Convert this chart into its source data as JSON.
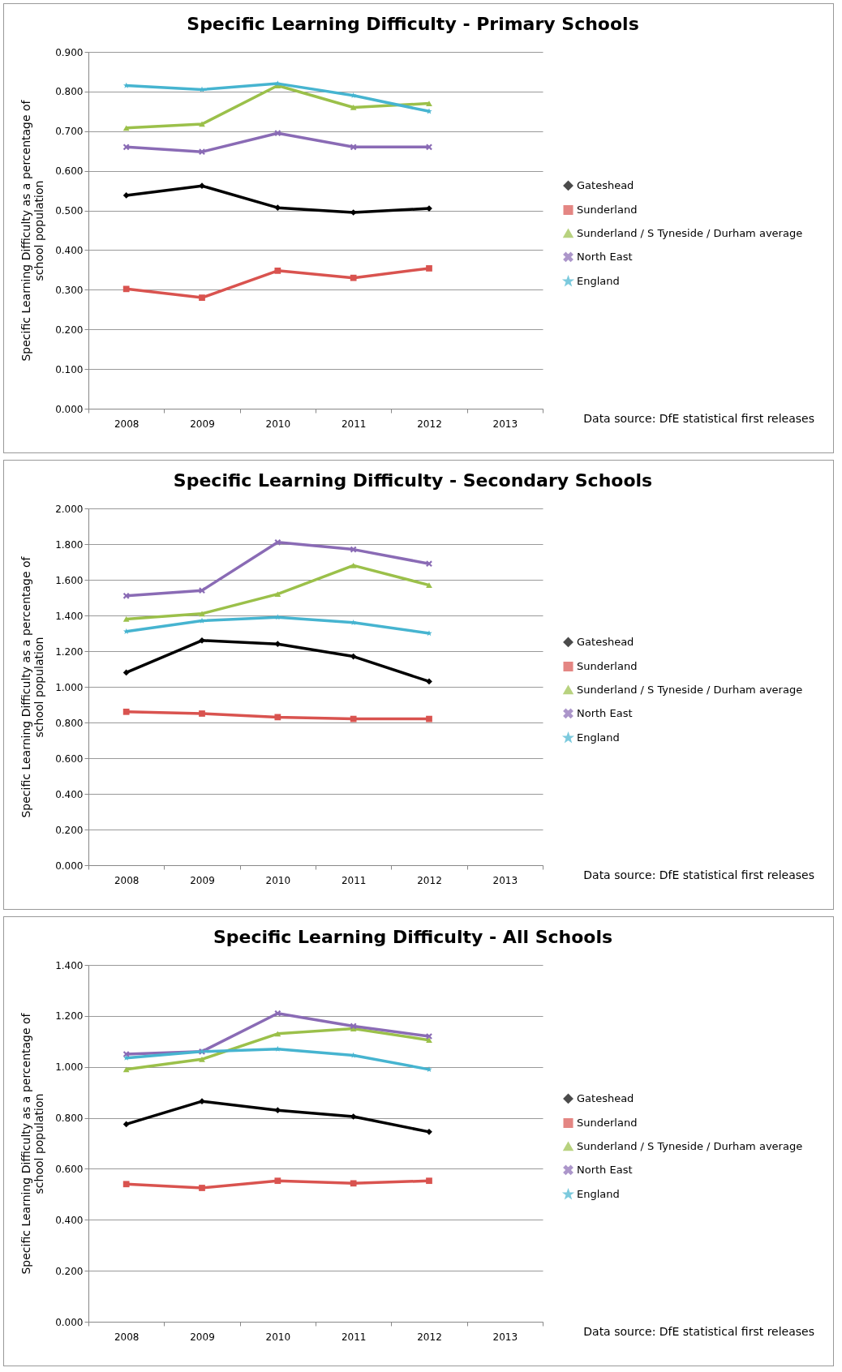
{
  "chart_data": [
    {
      "type": "line",
      "title": "Specific Learning Difficulty - Primary Schools",
      "ylabel": "Specific Learning Difficulty as a percentage of school population",
      "annotations": [
        "Data source: DfE statistical first releases"
      ],
      "categories": [
        "2008",
        "2009",
        "2010",
        "2011",
        "2012",
        "2013"
      ],
      "ylim": [
        0,
        0.9
      ],
      "yticks": [
        {
          "value": 0,
          "label": "0.000"
        },
        {
          "value": 0.1,
          "label": "0.100"
        },
        {
          "value": 0.2,
          "label": "0.200"
        },
        {
          "value": 0.3,
          "label": "0.300"
        },
        {
          "value": 0.4,
          "label": "0.400"
        },
        {
          "value": 0.5,
          "label": "0.500"
        },
        {
          "value": 0.6,
          "label": "0.600"
        },
        {
          "value": 0.7,
          "label": "0.700"
        },
        {
          "value": 0.8,
          "label": "0.800"
        },
        {
          "value": 0.9,
          "label": "0.900"
        }
      ],
      "grid": "y",
      "legend": "right",
      "series": [
        {
          "name": "Gateshead",
          "color": "#000000",
          "marker": "diamond",
          "values": [
            0.538,
            0.562,
            0.507,
            0.495,
            0.505,
            null
          ]
        },
        {
          "name": "Sunderland",
          "color": "#d9534f",
          "marker": "square",
          "values": [
            0.302,
            0.28,
            0.348,
            0.33,
            0.354,
            null
          ]
        },
        {
          "name": "Sunderland / S Tyneside / Durham average",
          "color": "#9bc04a",
          "marker": "triangle",
          "values": [
            0.708,
            0.718,
            0.815,
            0.76,
            0.77,
            null
          ]
        },
        {
          "name": "North East",
          "color": "#8a6bb5",
          "marker": "cross",
          "values": [
            0.66,
            0.648,
            0.695,
            0.66,
            0.66,
            null
          ]
        },
        {
          "name": "England",
          "color": "#46b4d0",
          "marker": "star",
          "values": [
            0.815,
            0.805,
            0.82,
            0.79,
            0.75,
            null
          ]
        }
      ]
    },
    {
      "type": "line",
      "title": "Specific Learning Difficulty - Secondary Schools",
      "ylabel": "Specific Learning Difficulty as a percentage of school population",
      "annotations": [
        "Data source: DfE statistical first releases"
      ],
      "categories": [
        "2008",
        "2009",
        "2010",
        "2011",
        "2012",
        "2013"
      ],
      "ylim": [
        0,
        2
      ],
      "yticks": [
        {
          "value": 0,
          "label": "0.000"
        },
        {
          "value": 0.2,
          "label": "0.200"
        },
        {
          "value": 0.4,
          "label": "0.400"
        },
        {
          "value": 0.6,
          "label": "0.600"
        },
        {
          "value": 0.8,
          "label": "0.800"
        },
        {
          "value": 1,
          "label": "1.000"
        },
        {
          "value": 1.2,
          "label": "1.200"
        },
        {
          "value": 1.4,
          "label": "1.400"
        },
        {
          "value": 1.6,
          "label": "1.600"
        },
        {
          "value": 1.8,
          "label": "1.800"
        },
        {
          "value": 2,
          "label": "2.000"
        }
      ],
      "grid": "y",
      "legend": "right",
      "series": [
        {
          "name": "Gateshead",
          "color": "#000000",
          "marker": "diamond",
          "values": [
            1.08,
            1.26,
            1.24,
            1.17,
            1.03,
            null
          ]
        },
        {
          "name": "Sunderland",
          "color": "#d9534f",
          "marker": "square",
          "values": [
            0.86,
            0.85,
            0.83,
            0.82,
            0.82,
            null
          ]
        },
        {
          "name": "Sunderland / S Tyneside / Durham average",
          "color": "#9bc04a",
          "marker": "triangle",
          "values": [
            1.38,
            1.41,
            1.52,
            1.68,
            1.57,
            null
          ]
        },
        {
          "name": "North East",
          "color": "#8a6bb5",
          "marker": "cross",
          "values": [
            1.51,
            1.54,
            1.81,
            1.77,
            1.69,
            null
          ]
        },
        {
          "name": "England",
          "color": "#46b4d0",
          "marker": "star",
          "values": [
            1.31,
            1.37,
            1.39,
            1.36,
            1.3,
            null
          ]
        }
      ]
    },
    {
      "type": "line",
      "title": "Specific Learning Difficulty - All Schools",
      "ylabel": "Specific Learning Difficulty  as a percentage of school population",
      "annotations": [
        "Data source: DfE statistical first releases"
      ],
      "categories": [
        "2008",
        "2009",
        "2010",
        "2011",
        "2012",
        "2013"
      ],
      "ylim": [
        0,
        1.4
      ],
      "yticks": [
        {
          "value": 0,
          "label": "0.000"
        },
        {
          "value": 0.2,
          "label": "0.200"
        },
        {
          "value": 0.4,
          "label": "0.400"
        },
        {
          "value": 0.6,
          "label": "0.600"
        },
        {
          "value": 0.8,
          "label": "0.800"
        },
        {
          "value": 1,
          "label": "1.000"
        },
        {
          "value": 1.2,
          "label": "1.200"
        },
        {
          "value": 1.4,
          "label": "1.400"
        }
      ],
      "grid": "y",
      "legend": "right",
      "series": [
        {
          "name": "Gateshead",
          "color": "#000000",
          "marker": "diamond",
          "values": [
            0.775,
            0.865,
            0.83,
            0.805,
            0.745,
            null
          ]
        },
        {
          "name": "Sunderland",
          "color": "#d9534f",
          "marker": "square",
          "values": [
            0.54,
            0.525,
            0.553,
            0.543,
            0.553,
            null
          ]
        },
        {
          "name": "Sunderland / S Tyneside / Durham average",
          "color": "#9bc04a",
          "marker": "triangle",
          "values": [
            0.99,
            1.03,
            1.13,
            1.15,
            1.105,
            null
          ]
        },
        {
          "name": "North East",
          "color": "#8a6bb5",
          "marker": "cross",
          "values": [
            1.05,
            1.06,
            1.21,
            1.16,
            1.12,
            null
          ]
        },
        {
          "name": "England",
          "color": "#46b4d0",
          "marker": "star",
          "values": [
            1.035,
            1.06,
            1.07,
            1.045,
            0.99,
            null
          ]
        }
      ]
    }
  ]
}
